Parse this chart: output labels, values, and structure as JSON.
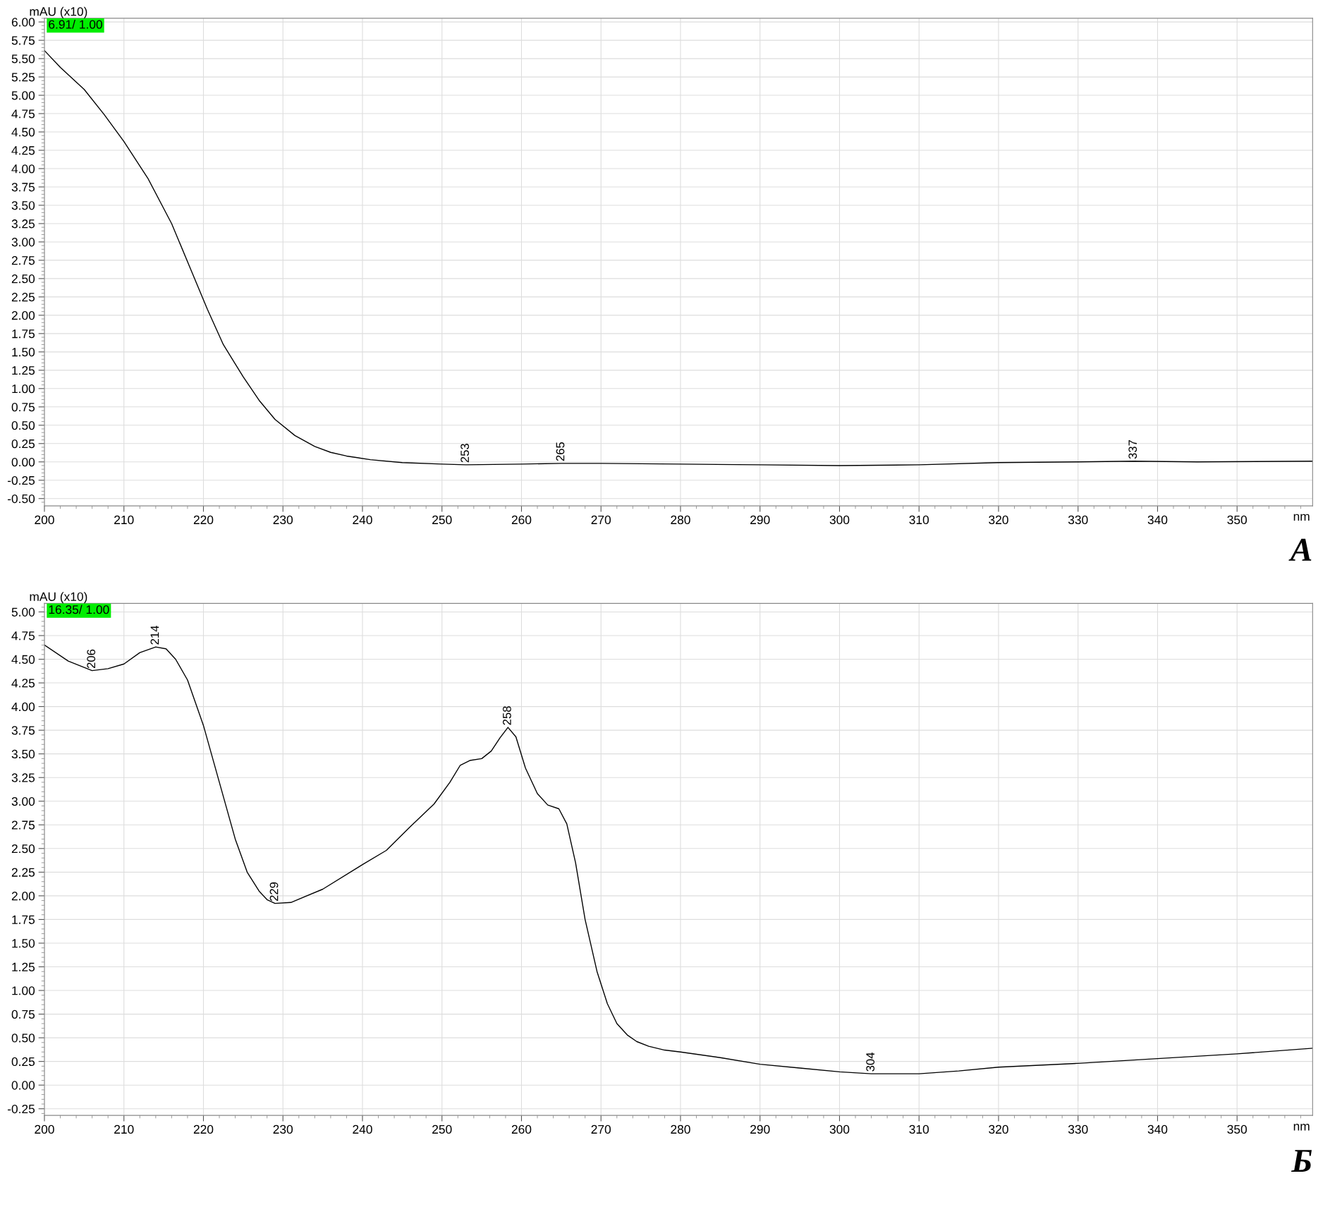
{
  "chart_data": [
    {
      "type": "line",
      "title": "А",
      "ylabel": "mAU (x10)",
      "xlabel": "nm",
      "annotations": [
        "6.91/ 1.00",
        {
          "text": "253",
          "x": 253,
          "y": -0.04
        },
        {
          "text": "265",
          "x": 265,
          "y": -0.02
        },
        {
          "text": "337",
          "x": 337,
          "y": 0.01
        }
      ],
      "series": [
        {
          "color": "#000000",
          "x": [
            200,
            202,
            205,
            207.5,
            210,
            213,
            216,
            218.5,
            220.5,
            222.5,
            225,
            227,
            229,
            231.5,
            234,
            236,
            238,
            241,
            245,
            250,
            253,
            260,
            265,
            270,
            280,
            290,
            300,
            310,
            320,
            330,
            337,
            345,
            359.5
          ],
          "values": [
            5.61,
            5.38,
            5.08,
            4.74,
            4.37,
            3.87,
            3.25,
            2.6,
            2.08,
            1.6,
            1.16,
            0.84,
            0.58,
            0.36,
            0.21,
            0.13,
            0.08,
            0.03,
            -0.01,
            -0.03,
            -0.04,
            -0.03,
            -0.02,
            -0.02,
            -0.03,
            -0.04,
            -0.05,
            -0.04,
            -0.01,
            0.0,
            0.01,
            0.0,
            0.01
          ]
        }
      ],
      "xlim": [
        200,
        359.5
      ],
      "xticks": [
        200,
        210,
        220,
        230,
        240,
        250,
        260,
        270,
        280,
        290,
        300,
        310,
        320,
        330,
        340,
        350
      ],
      "ylim": [
        -0.6,
        6.05
      ],
      "yticks": [
        {
          "value": -0.5,
          "label": "-0.50"
        },
        {
          "value": -0.25,
          "label": "-0.25"
        },
        {
          "value": 0,
          "label": "0.00"
        },
        {
          "value": 0.25,
          "label": "0.25"
        },
        {
          "value": 0.5,
          "label": "0.50"
        },
        {
          "value": 0.75,
          "label": "0.75"
        },
        {
          "value": 1,
          "label": "1.00"
        },
        {
          "value": 1.25,
          "label": "1.25"
        },
        {
          "value": 1.5,
          "label": "1.50"
        },
        {
          "value": 1.75,
          "label": "1.75"
        },
        {
          "value": 2,
          "label": "2.00"
        },
        {
          "value": 2.25,
          "label": "2.25"
        },
        {
          "value": 2.5,
          "label": "2.50"
        },
        {
          "value": 2.75,
          "label": "2.75"
        },
        {
          "value": 3,
          "label": "3.00"
        },
        {
          "value": 3.25,
          "label": "3.25"
        },
        {
          "value": 3.5,
          "label": "3.50"
        },
        {
          "value": 3.75,
          "label": "3.75"
        },
        {
          "value": 4,
          "label": "4.00"
        },
        {
          "value": 4.25,
          "label": "4.25"
        },
        {
          "value": 4.5,
          "label": "4.50"
        },
        {
          "value": 4.75,
          "label": "4.75"
        },
        {
          "value": 5,
          "label": "5.00"
        },
        {
          "value": 5.25,
          "label": "5.25"
        },
        {
          "value": 5.5,
          "label": "5.50"
        },
        {
          "value": 5.75,
          "label": "5.75"
        },
        {
          "value": 6,
          "label": "6.00"
        }
      ],
      "grid": true,
      "marker": "none",
      "line_style": "solid"
    },
    {
      "type": "line",
      "title": "Б",
      "ylabel": "mAU (x10)",
      "xlabel": "nm",
      "annotations": [
        "16.35/ 1.00",
        {
          "text": "206",
          "x": 206,
          "y": 4.38
        },
        {
          "text": "214",
          "x": 214,
          "y": 4.63
        },
        {
          "text": "229",
          "x": 229,
          "y": 1.92
        },
        {
          "text": "258",
          "x": 258.3,
          "y": 3.78
        },
        {
          "text": "304",
          "x": 304,
          "y": 0.12
        }
      ],
      "series": [
        {
          "color": "#000000",
          "x": [
            200,
            203,
            206,
            208,
            210,
            212,
            214,
            215.3,
            216.5,
            218,
            220,
            222,
            224,
            225.5,
            227,
            228,
            229,
            231,
            235,
            240,
            243,
            246,
            249,
            251,
            252.3,
            253.5,
            255,
            256.2,
            257.3,
            258.3,
            259.3,
            260.5,
            262,
            263.3,
            264.7,
            265.7,
            266.8,
            268,
            269.5,
            270.8,
            272,
            273.3,
            274.5,
            276,
            278,
            280,
            285,
            290,
            295,
            300,
            304,
            310,
            315,
            320,
            330,
            340,
            350,
            359.5
          ],
          "values": [
            4.65,
            4.48,
            4.38,
            4.4,
            4.45,
            4.57,
            4.63,
            4.61,
            4.5,
            4.28,
            3.8,
            3.2,
            2.6,
            2.25,
            2.05,
            1.96,
            1.92,
            1.93,
            2.07,
            2.33,
            2.48,
            2.73,
            2.97,
            3.2,
            3.38,
            3.43,
            3.45,
            3.53,
            3.67,
            3.78,
            3.68,
            3.35,
            3.08,
            2.96,
            2.92,
            2.76,
            2.35,
            1.75,
            1.2,
            0.86,
            0.65,
            0.53,
            0.46,
            0.41,
            0.37,
            0.35,
            0.29,
            0.22,
            0.18,
            0.14,
            0.12,
            0.12,
            0.15,
            0.19,
            0.23,
            0.28,
            0.33,
            0.39
          ]
        }
      ],
      "xlim": [
        200,
        359.5
      ],
      "xticks": [
        200,
        210,
        220,
        230,
        240,
        250,
        260,
        270,
        280,
        290,
        300,
        310,
        320,
        330,
        340,
        350
      ],
      "ylim": [
        -0.32,
        5.09
      ],
      "yticks": [
        {
          "value": -0.25,
          "label": "-0.25"
        },
        {
          "value": 0,
          "label": "0.00"
        },
        {
          "value": 0.25,
          "label": "0.25"
        },
        {
          "value": 0.5,
          "label": "0.50"
        },
        {
          "value": 0.75,
          "label": "0.75"
        },
        {
          "value": 1,
          "label": "1.00"
        },
        {
          "value": 1.25,
          "label": "1.25"
        },
        {
          "value": 1.5,
          "label": "1.50"
        },
        {
          "value": 1.75,
          "label": "1.75"
        },
        {
          "value": 2,
          "label": "2.00"
        },
        {
          "value": 2.25,
          "label": "2.25"
        },
        {
          "value": 2.5,
          "label": "2.50"
        },
        {
          "value": 2.75,
          "label": "2.75"
        },
        {
          "value": 3,
          "label": "3.00"
        },
        {
          "value": 3.25,
          "label": "3.25"
        },
        {
          "value": 3.5,
          "label": "3.50"
        },
        {
          "value": 3.75,
          "label": "3.75"
        },
        {
          "value": 4,
          "label": "4.00"
        },
        {
          "value": 4.25,
          "label": "4.25"
        },
        {
          "value": 4.5,
          "label": "4.50"
        },
        {
          "value": 4.75,
          "label": "4.75"
        },
        {
          "value": 5,
          "label": "5.00"
        }
      ],
      "grid": true,
      "marker": "none",
      "line_style": "solid"
    }
  ]
}
